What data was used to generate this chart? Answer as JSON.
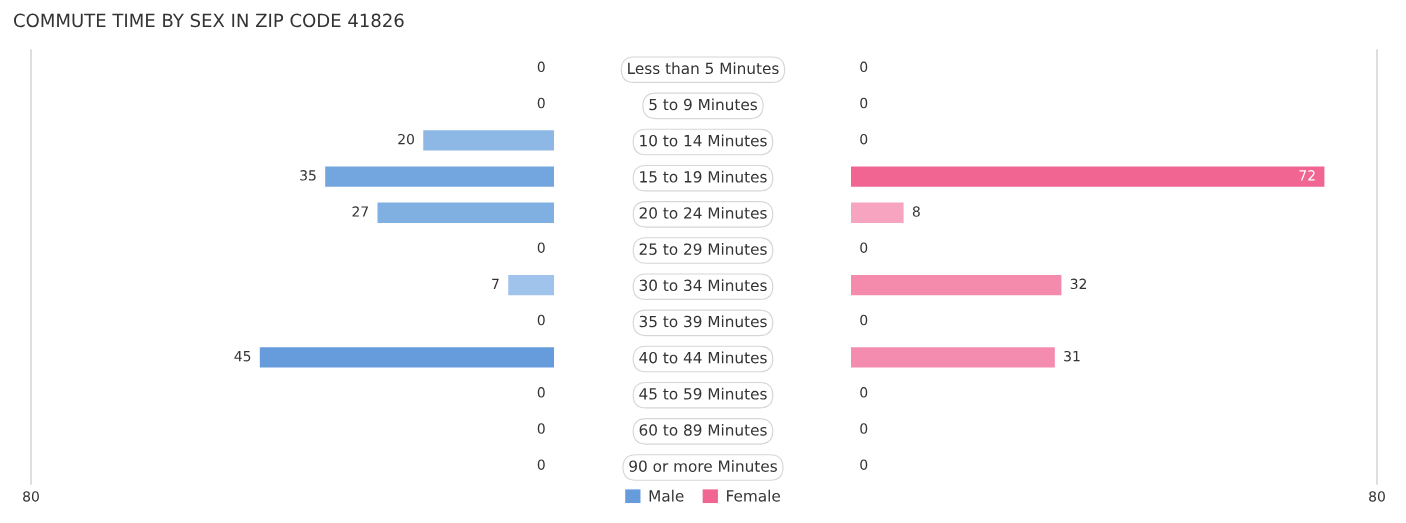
{
  "chart_data": [
    {
      "type": "bar",
      "orientation": "horizontal",
      "title": "COMMUTE TIME BY SEX IN ZIP CODE 41826",
      "categories": [
        "Less than 5 Minutes",
        "5 to 9 Minutes",
        "10 to 14 Minutes",
        "15 to 19 Minutes",
        "20 to 24 Minutes",
        "25 to 29 Minutes",
        "30 to 34 Minutes",
        "35 to 39 Minutes",
        "40 to 44 Minutes",
        "45 to 59 Minutes",
        "60 to 89 Minutes",
        "90 or more Minutes"
      ],
      "series": [
        {
          "name": "Male",
          "color": "#669cdb",
          "colors": [
            "#aac9ec",
            "#aac9ec",
            "#8db8e6",
            "#73a5de",
            "#80afe2",
            "#aac9ec",
            "#9fc3ea",
            "#aac9ec",
            "#669cdb",
            "#aac9ec",
            "#aac9ec",
            "#aac9ec"
          ],
          "values": [
            0,
            0,
            20,
            35,
            27,
            0,
            7,
            0,
            45,
            0,
            0,
            0
          ]
        }
      ],
      "xlim": [
        80,
        0
      ],
      "xticks": [
        80
      ],
      "data_labels": true,
      "legend": "bottom"
    },
    {
      "type": "bar",
      "orientation": "horizontal",
      "categories": [
        "Less than 5 Minutes",
        "5 to 9 Minutes",
        "10 to 14 Minutes",
        "15 to 19 Minutes",
        "20 to 24 Minutes",
        "25 to 29 Minutes",
        "30 to 34 Minutes",
        "35 to 39 Minutes",
        "40 to 44 Minutes",
        "45 to 59 Minutes",
        "60 to 89 Minutes",
        "90 or more Minutes"
      ],
      "series": [
        {
          "name": "Female",
          "color": "#f06592",
          "colors": [
            "#f7abc5",
            "#f7abc5",
            "#f7abc5",
            "#f06592",
            "#f6a4bf",
            "#f7abc5",
            "#f48bad",
            "#f7abc5",
            "#f48caf",
            "#f7abc5",
            "#f7abc5",
            "#f7abc5"
          ],
          "values": [
            0,
            0,
            0,
            72,
            8,
            0,
            32,
            0,
            31,
            0,
            0,
            0
          ]
        }
      ],
      "xlim": [
        0,
        80
      ],
      "xticks": [
        80
      ],
      "data_labels": true,
      "legend": "bottom",
      "tick_labels": "x"
    }
  ]
}
